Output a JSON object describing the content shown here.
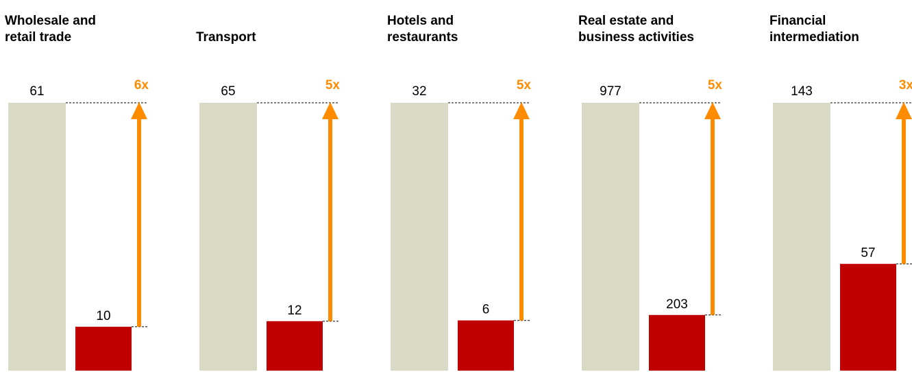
{
  "colors": {
    "baseline_bar": "#d9d9c6",
    "current_bar": "#c00000",
    "arrow": "#ff8c00",
    "multiplier_text": "#ff8c00",
    "dashed_line": "#000000"
  },
  "chart_data": [
    {
      "type": "bar",
      "title_lines": [
        "Wholesale and",
        "retail trade"
      ],
      "categories": [
        "",
        ""
      ],
      "values": [
        61,
        10
      ],
      "value_labels": [
        "61",
        "10"
      ],
      "multiplier": "6x"
    },
    {
      "type": "bar",
      "title_lines": [
        "",
        "Transport"
      ],
      "categories": [
        "",
        ""
      ],
      "values": [
        65,
        12
      ],
      "value_labels": [
        "65",
        "12"
      ],
      "multiplier": "5x"
    },
    {
      "type": "bar",
      "title_lines": [
        "Hotels and",
        "restaurants"
      ],
      "categories": [
        "",
        ""
      ],
      "values": [
        32,
        6
      ],
      "value_labels": [
        "32",
        "6"
      ],
      "multiplier": "5x"
    },
    {
      "type": "bar",
      "title_lines": [
        "Real estate and",
        "business activities"
      ],
      "categories": [
        "",
        ""
      ],
      "values": [
        977,
        203
      ],
      "value_labels": [
        "977",
        "203"
      ],
      "multiplier": "5x"
    },
    {
      "type": "bar",
      "title_lines": [
        "Financial",
        "intermediation"
      ],
      "categories": [
        "",
        ""
      ],
      "values": [
        143,
        57
      ],
      "value_labels": [
        "143",
        "57"
      ],
      "multiplier": "3x"
    }
  ]
}
